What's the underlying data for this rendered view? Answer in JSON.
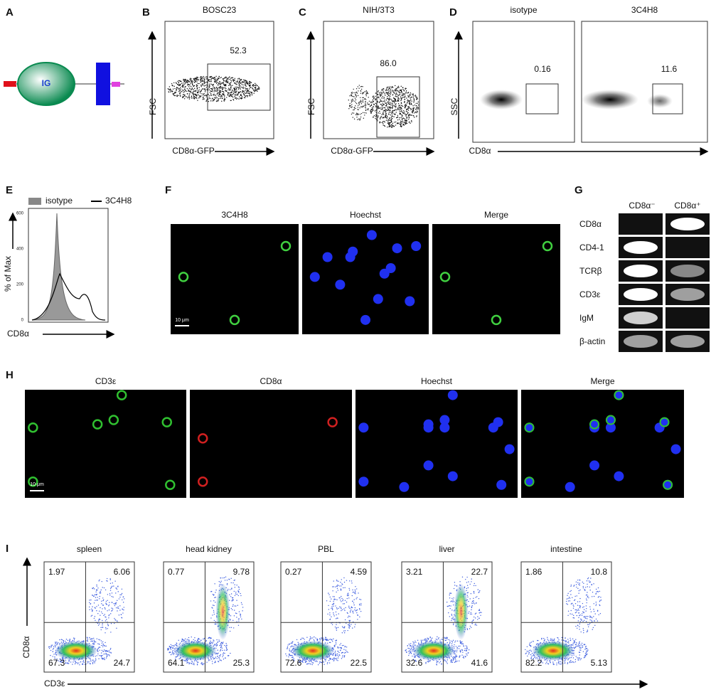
{
  "panel_labels": [
    "A",
    "B",
    "C",
    "D",
    "E",
    "F",
    "G",
    "H",
    "I"
  ],
  "a": {
    "label": "IG"
  },
  "b": {
    "title": "BOSC23",
    "gate": "52.3",
    "y_label": "FSC",
    "x_label": "CD8α-GFP"
  },
  "c": {
    "title": "NIH/3T3",
    "gate": "86.0",
    "y_label": "FSC",
    "x_label": "CD8α-GFP"
  },
  "d": {
    "plots": [
      {
        "title": "isotype",
        "gate": "0.16"
      },
      {
        "title": "3C4H8",
        "gate": "11.6"
      }
    ],
    "y_label": "SSC",
    "x_label": "CD8α"
  },
  "e": {
    "legend": [
      "isotype",
      "3C4H8"
    ],
    "y_label": "% of Max",
    "x_label": "CD8α",
    "yticks": [
      "0",
      "200",
      "400",
      "600"
    ]
  },
  "f": {
    "images": [
      "3C4H8",
      "Hoechst",
      "Merge"
    ],
    "scale": "10 μm"
  },
  "g": {
    "columns": [
      "CD8α⁻",
      "CD8α⁺"
    ],
    "rows": [
      "CD8α",
      "CD4-1",
      "TCRβ",
      "CD3ε",
      "IgM",
      "β-actin"
    ]
  },
  "h": {
    "images": [
      "CD3ε",
      "CD8α",
      "Hoechst",
      "Merge"
    ],
    "scale": "10 μm"
  },
  "i": {
    "plots": [
      {
        "title": "spleen",
        "quadrants": [
          "1.97",
          "6.06",
          "67.3",
          "24.7"
        ]
      },
      {
        "title": "head kidney",
        "quadrants": [
          "0.77",
          "9.78",
          "64.1",
          "25.3"
        ]
      },
      {
        "title": "PBL",
        "quadrants": [
          "0.27",
          "4.59",
          "72.6",
          "22.5"
        ]
      },
      {
        "title": "liver",
        "quadrants": [
          "3.21",
          "22.7",
          "32.6",
          "41.6"
        ]
      },
      {
        "title": "intestine",
        "quadrants": [
          "1.86",
          "10.8",
          "82.2",
          "5.13"
        ]
      }
    ],
    "y_label": "CD8α",
    "x_label": "CD3ε"
  }
}
